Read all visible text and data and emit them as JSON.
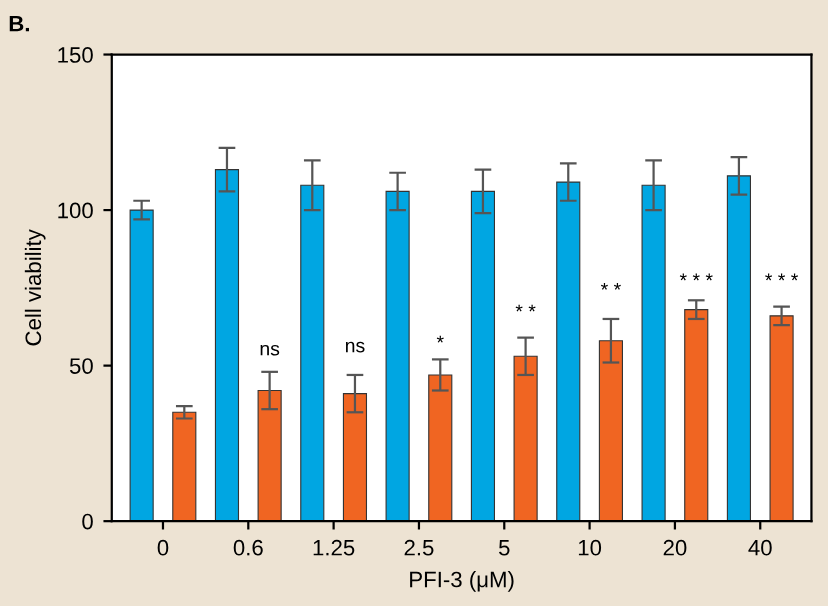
{
  "chart_data": {
    "type": "bar",
    "xlabel": "PFI-3 (μM)",
    "ylabel": "Cell viability",
    "categories": [
      "0",
      "0.6",
      "1.25",
      "2.5",
      "5",
      "10",
      "20",
      "40"
    ],
    "series": [
      {
        "color": "#00a6e2",
        "values": [
          100,
          113,
          108,
          106,
          106,
          109,
          108,
          111
        ],
        "errors": [
          3,
          7,
          8,
          6,
          7,
          6,
          8,
          6
        ]
      },
      {
        "color": "#f06522",
        "values": [
          35,
          42,
          41,
          47,
          53,
          58,
          68,
          66
        ],
        "errors": [
          2,
          6,
          6,
          5,
          6,
          7,
          3,
          3
        ]
      }
    ],
    "ylim": [
      0,
      150
    ],
    "yticks": [
      0,
      50,
      100,
      150
    ],
    "grid": false,
    "legend": false,
    "annotations": [
      "B.",
      {
        "text": "ns",
        "x": "0.6",
        "y": 52
      },
      {
        "text": "ns",
        "x": "1.25",
        "y": 53
      },
      {
        "text": "*",
        "x": "2.5",
        "y": 54
      },
      {
        "text": "* *",
        "x": "5",
        "y": 64
      },
      {
        "text": "* *",
        "x": "10",
        "y": 71
      },
      {
        "text": "* * *",
        "x": "20",
        "y": 74
      },
      {
        "text": "* * *",
        "x": "40",
        "y": 74
      }
    ]
  }
}
